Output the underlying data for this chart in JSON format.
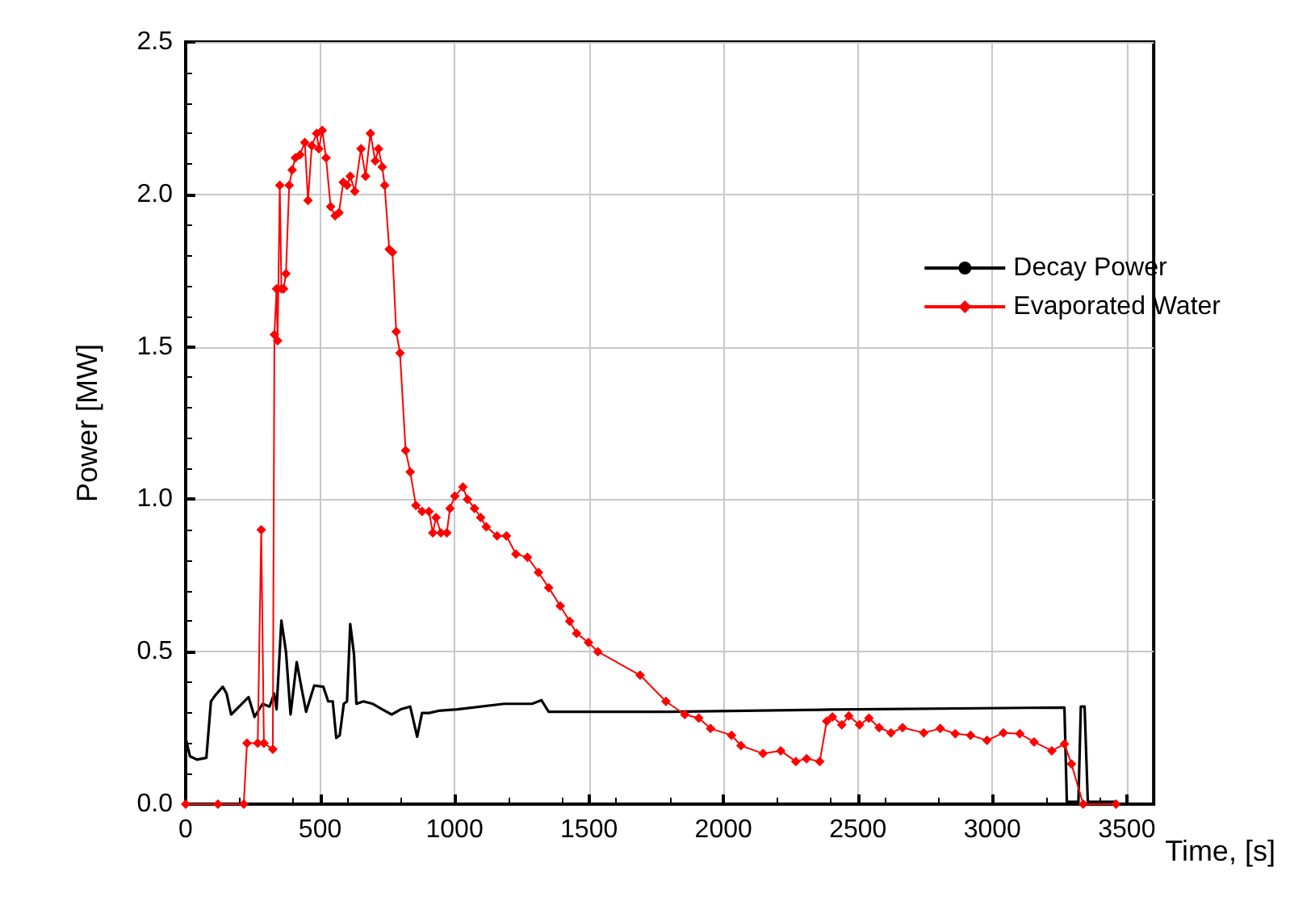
{
  "chart_data": {
    "type": "line",
    "xlabel": "Time, [s]",
    "ylabel": "Power [MW]",
    "xlim": [
      0,
      3600
    ],
    "ylim": [
      0,
      2.5
    ],
    "xticks": [
      0,
      500,
      1000,
      1500,
      2000,
      2500,
      3000,
      3500
    ],
    "yticks": [
      {
        "value": 0,
        "label": "0.0"
      },
      {
        "value": 0.5,
        "label": "0.5"
      },
      {
        "value": 1,
        "label": "1.0"
      },
      {
        "value": 1.5,
        "label": "1.5"
      },
      {
        "value": 2,
        "label": "2.0"
      },
      {
        "value": 2.5,
        "label": "2.5"
      }
    ],
    "grid": true,
    "legend": "top right",
    "series": [
      {
        "name": "Decay Power",
        "color": "#000000",
        "marker": "none",
        "x": [
          2,
          16,
          42,
          77,
          94,
          111,
          138,
          152,
          169,
          199,
          234,
          256,
          286,
          312,
          329,
          338,
          356,
          373,
          390,
          413,
          431,
          448,
          478,
          512,
          530,
          547,
          560,
          573,
          588,
          600,
          612,
          626,
          635,
          661,
          696,
          731,
          766,
          800,
          835,
          861,
          879,
          905,
          940,
          1010,
          1184,
          1288,
          1323,
          1350,
          1794,
          2400,
          3268,
          3277,
          3320,
          3329,
          3343,
          3355,
          3460
        ],
        "values": [
          0.209,
          0.157,
          0.146,
          0.152,
          0.337,
          0.358,
          0.385,
          0.363,
          0.294,
          0.32,
          0.351,
          0.286,
          0.329,
          0.32,
          0.363,
          0.311,
          0.602,
          0.5,
          0.294,
          0.466,
          0.38,
          0.303,
          0.389,
          0.385,
          0.337,
          0.337,
          0.217,
          0.226,
          0.329,
          0.337,
          0.591,
          0.492,
          0.329,
          0.337,
          0.329,
          0.311,
          0.294,
          0.311,
          0.32,
          0.221,
          0.299,
          0.299,
          0.306,
          0.311,
          0.329,
          0.329,
          0.341,
          0.303,
          0.303,
          0.31,
          0.317,
          0.008,
          0.008,
          0.32,
          0.32,
          0.008,
          0.008
        ]
      },
      {
        "name": "Evaporated Water",
        "color": "#ff0000",
        "marker": "diamond",
        "x": [
          0,
          120,
          216,
          228,
          268,
          281,
          291,
          324,
          330,
          338,
          342,
          350,
          356,
          364,
          373,
          385,
          396,
          408,
          425,
          443,
          455,
          469,
          487,
          495,
          508,
          522,
          539,
          556,
          570,
          586,
          600,
          612,
          629,
          652,
          669,
          687,
          705,
          717,
          731,
          740,
          757,
          769,
          783,
          797,
          818,
          835,
          856,
          879,
          905,
          919,
          931,
          949,
          971,
          983,
          1001,
          1031,
          1048,
          1074,
          1097,
          1118,
          1158,
          1193,
          1228,
          1271,
          1312,
          1350,
          1393,
          1428,
          1454,
          1498,
          1533,
          1690,
          1786,
          1856,
          1908,
          1952,
          2030,
          2065,
          2147,
          2213,
          2269,
          2309,
          2358,
          2384,
          2405,
          2440,
          2466,
          2506,
          2541,
          2579,
          2623,
          2666,
          2745,
          2806,
          2862,
          2919,
          2980,
          3041,
          3102,
          3155,
          3221,
          3268,
          3294,
          3338,
          3460
        ],
        "values": [
          0,
          0,
          0,
          0.2,
          0.2,
          0.9,
          0.2,
          0.18,
          1.54,
          1.69,
          1.52,
          2.03,
          1.69,
          1.69,
          1.74,
          2.03,
          2.08,
          2.12,
          2.13,
          2.17,
          1.98,
          2.16,
          2.2,
          2.15,
          2.21,
          2.12,
          1.96,
          1.93,
          1.94,
          2.04,
          2.03,
          2.06,
          2.01,
          2.15,
          2.06,
          2.2,
          2.11,
          2.15,
          2.09,
          2.03,
          1.82,
          1.81,
          1.55,
          1.48,
          1.16,
          1.09,
          0.98,
          0.96,
          0.96,
          0.89,
          0.94,
          0.89,
          0.89,
          0.97,
          1.01,
          1.04,
          1,
          0.97,
          0.94,
          0.91,
          0.88,
          0.88,
          0.82,
          0.81,
          0.76,
          0.71,
          0.65,
          0.6,
          0.56,
          0.53,
          0.5,
          0.423,
          0.337,
          0.294,
          0.282,
          0.248,
          0.226,
          0.192,
          0.166,
          0.175,
          0.14,
          0.149,
          0.14,
          0.272,
          0.286,
          0.26,
          0.289,
          0.26,
          0.282,
          0.251,
          0.234,
          0.251,
          0.234,
          0.248,
          0.231,
          0.226,
          0.209,
          0.234,
          0.231,
          0.204,
          0.175,
          0.197,
          0.132,
          0,
          0
        ]
      }
    ]
  }
}
